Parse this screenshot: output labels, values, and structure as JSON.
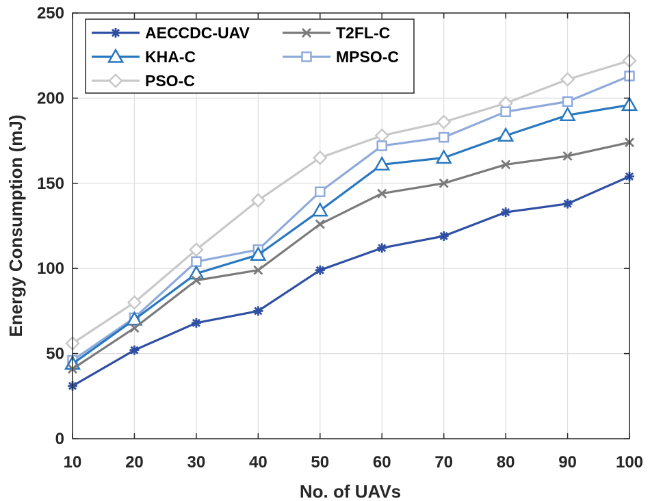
{
  "chart_data": {
    "type": "line",
    "title": "",
    "xlabel": "No. of UAVs",
    "ylabel": "Energy Consumption (mJ)",
    "x": [
      10,
      20,
      30,
      40,
      50,
      60,
      70,
      80,
      90,
      100
    ],
    "xlim": [
      10,
      100
    ],
    "ylim": [
      0,
      250
    ],
    "xticks": [
      10,
      20,
      30,
      40,
      50,
      60,
      70,
      80,
      90,
      100
    ],
    "yticks": [
      0,
      50,
      100,
      150,
      200,
      250
    ],
    "grid": true,
    "legend_position": "top-left",
    "series": [
      {
        "name": "AECCDC-UAV",
        "color": "#2e4fa3",
        "marker": "asterisk",
        "values": [
          31,
          52,
          68,
          75,
          99,
          112,
          119,
          133,
          138,
          154
        ]
      },
      {
        "name": "T2FL-C",
        "color": "#7a7a7a",
        "marker": "x",
        "values": [
          41,
          65,
          93,
          99,
          126,
          144,
          150,
          161,
          166,
          174
        ]
      },
      {
        "name": "KHA-C",
        "color": "#2878c0",
        "marker": "triangle",
        "values": [
          44,
          70,
          97,
          108,
          134,
          161,
          165,
          178,
          190,
          196
        ]
      },
      {
        "name": "MPSO-C",
        "color": "#8eaadb",
        "marker": "square",
        "values": [
          46,
          71,
          104,
          111,
          145,
          172,
          177,
          192,
          198,
          213
        ]
      },
      {
        "name": "PSO-C",
        "color": "#c8c8c8",
        "marker": "diamond",
        "values": [
          56,
          80,
          111,
          140,
          165,
          178,
          186,
          197,
          211,
          222
        ]
      }
    ]
  }
}
